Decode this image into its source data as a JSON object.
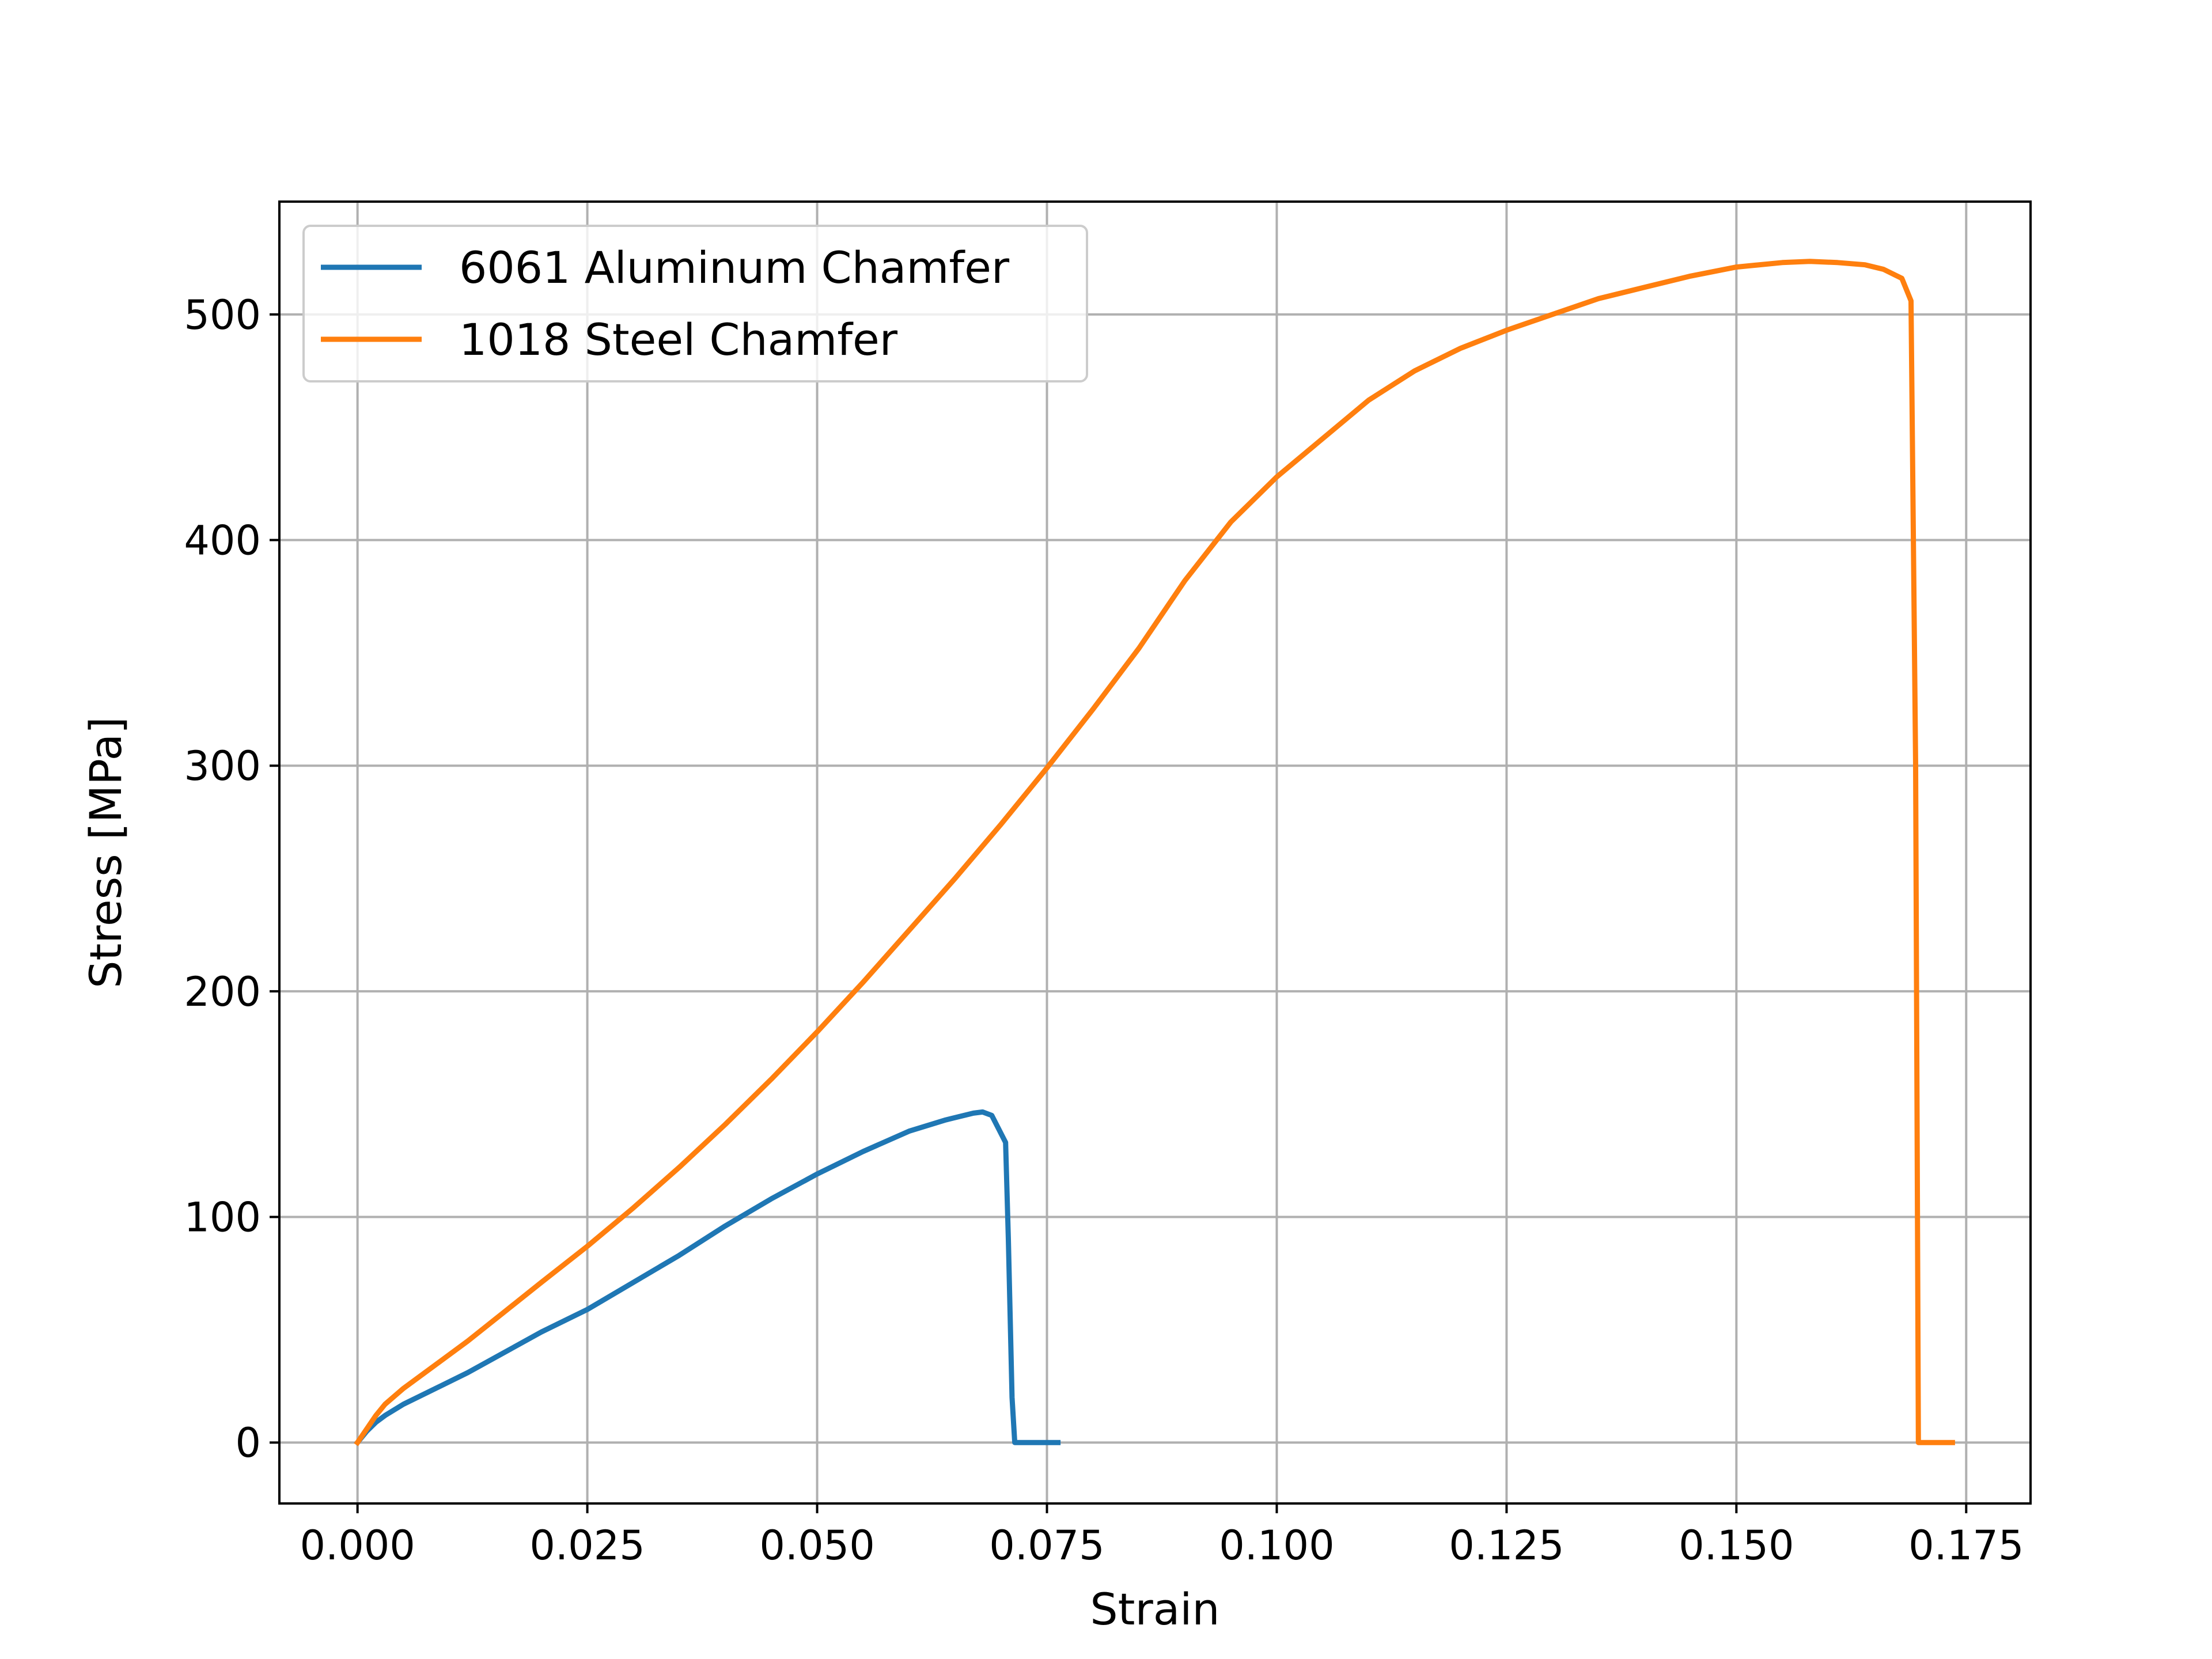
{
  "chart_data": {
    "type": "line",
    "title": "",
    "xlabel": "Strain",
    "ylabel": "Stress [MPa]",
    "xlim": [
      -0.0085,
      0.182
    ],
    "ylim": [
      -27,
      550
    ],
    "xticks": [
      0.0,
      0.025,
      0.05,
      0.075,
      0.1,
      0.125,
      0.15,
      0.175
    ],
    "xtick_labels": [
      "0.000",
      "0.025",
      "0.050",
      "0.075",
      "0.100",
      "0.125",
      "0.150",
      "0.175"
    ],
    "yticks": [
      0,
      100,
      200,
      300,
      400,
      500
    ],
    "ytick_labels": [
      "0",
      "100",
      "200",
      "300",
      "400",
      "500"
    ],
    "grid": true,
    "legend_position": "top-left",
    "series": [
      {
        "name": "6061 Aluminum Chamfer",
        "color": "#1f77b4",
        "x": [
          0.0,
          0.001,
          0.002,
          0.003,
          0.005,
          0.008,
          0.012,
          0.016,
          0.02,
          0.025,
          0.03,
          0.035,
          0.04,
          0.045,
          0.05,
          0.055,
          0.06,
          0.064,
          0.067,
          0.068,
          0.069,
          0.0705,
          0.0708,
          0.0712,
          0.0715,
          0.0725,
          0.074,
          0.0762
        ],
        "y": [
          0,
          5,
          9,
          12,
          17,
          23,
          31,
          40,
          49,
          59,
          71,
          83,
          96,
          108,
          119,
          129,
          138,
          143,
          146,
          146.5,
          145,
          133,
          90,
          20,
          0,
          0,
          0,
          0
        ]
      },
      {
        "name": "1018 Steel Chamfer",
        "color": "#ff7f0e",
        "x": [
          0.0,
          0.001,
          0.002,
          0.003,
          0.005,
          0.008,
          0.012,
          0.016,
          0.02,
          0.025,
          0.03,
          0.035,
          0.04,
          0.045,
          0.05,
          0.055,
          0.06,
          0.065,
          0.07,
          0.075,
          0.08,
          0.085,
          0.09,
          0.095,
          0.1,
          0.105,
          0.11,
          0.115,
          0.12,
          0.125,
          0.13,
          0.135,
          0.14,
          0.145,
          0.15,
          0.155,
          0.158,
          0.161,
          0.164,
          0.166,
          0.168,
          0.169,
          0.1695,
          0.1698,
          0.17,
          0.171,
          0.1735
        ],
        "y": [
          0,
          6,
          12,
          17,
          24,
          33,
          45,
          58,
          71,
          87,
          104,
          122,
          141,
          161,
          182,
          204,
          227,
          250,
          274,
          299,
          325,
          352,
          382,
          408,
          428,
          445,
          462,
          475,
          485,
          493,
          500,
          507,
          512,
          517,
          521,
          523,
          523.5,
          523,
          522,
          520,
          516,
          506,
          300,
          0,
          0,
          0,
          0
        ]
      }
    ]
  }
}
